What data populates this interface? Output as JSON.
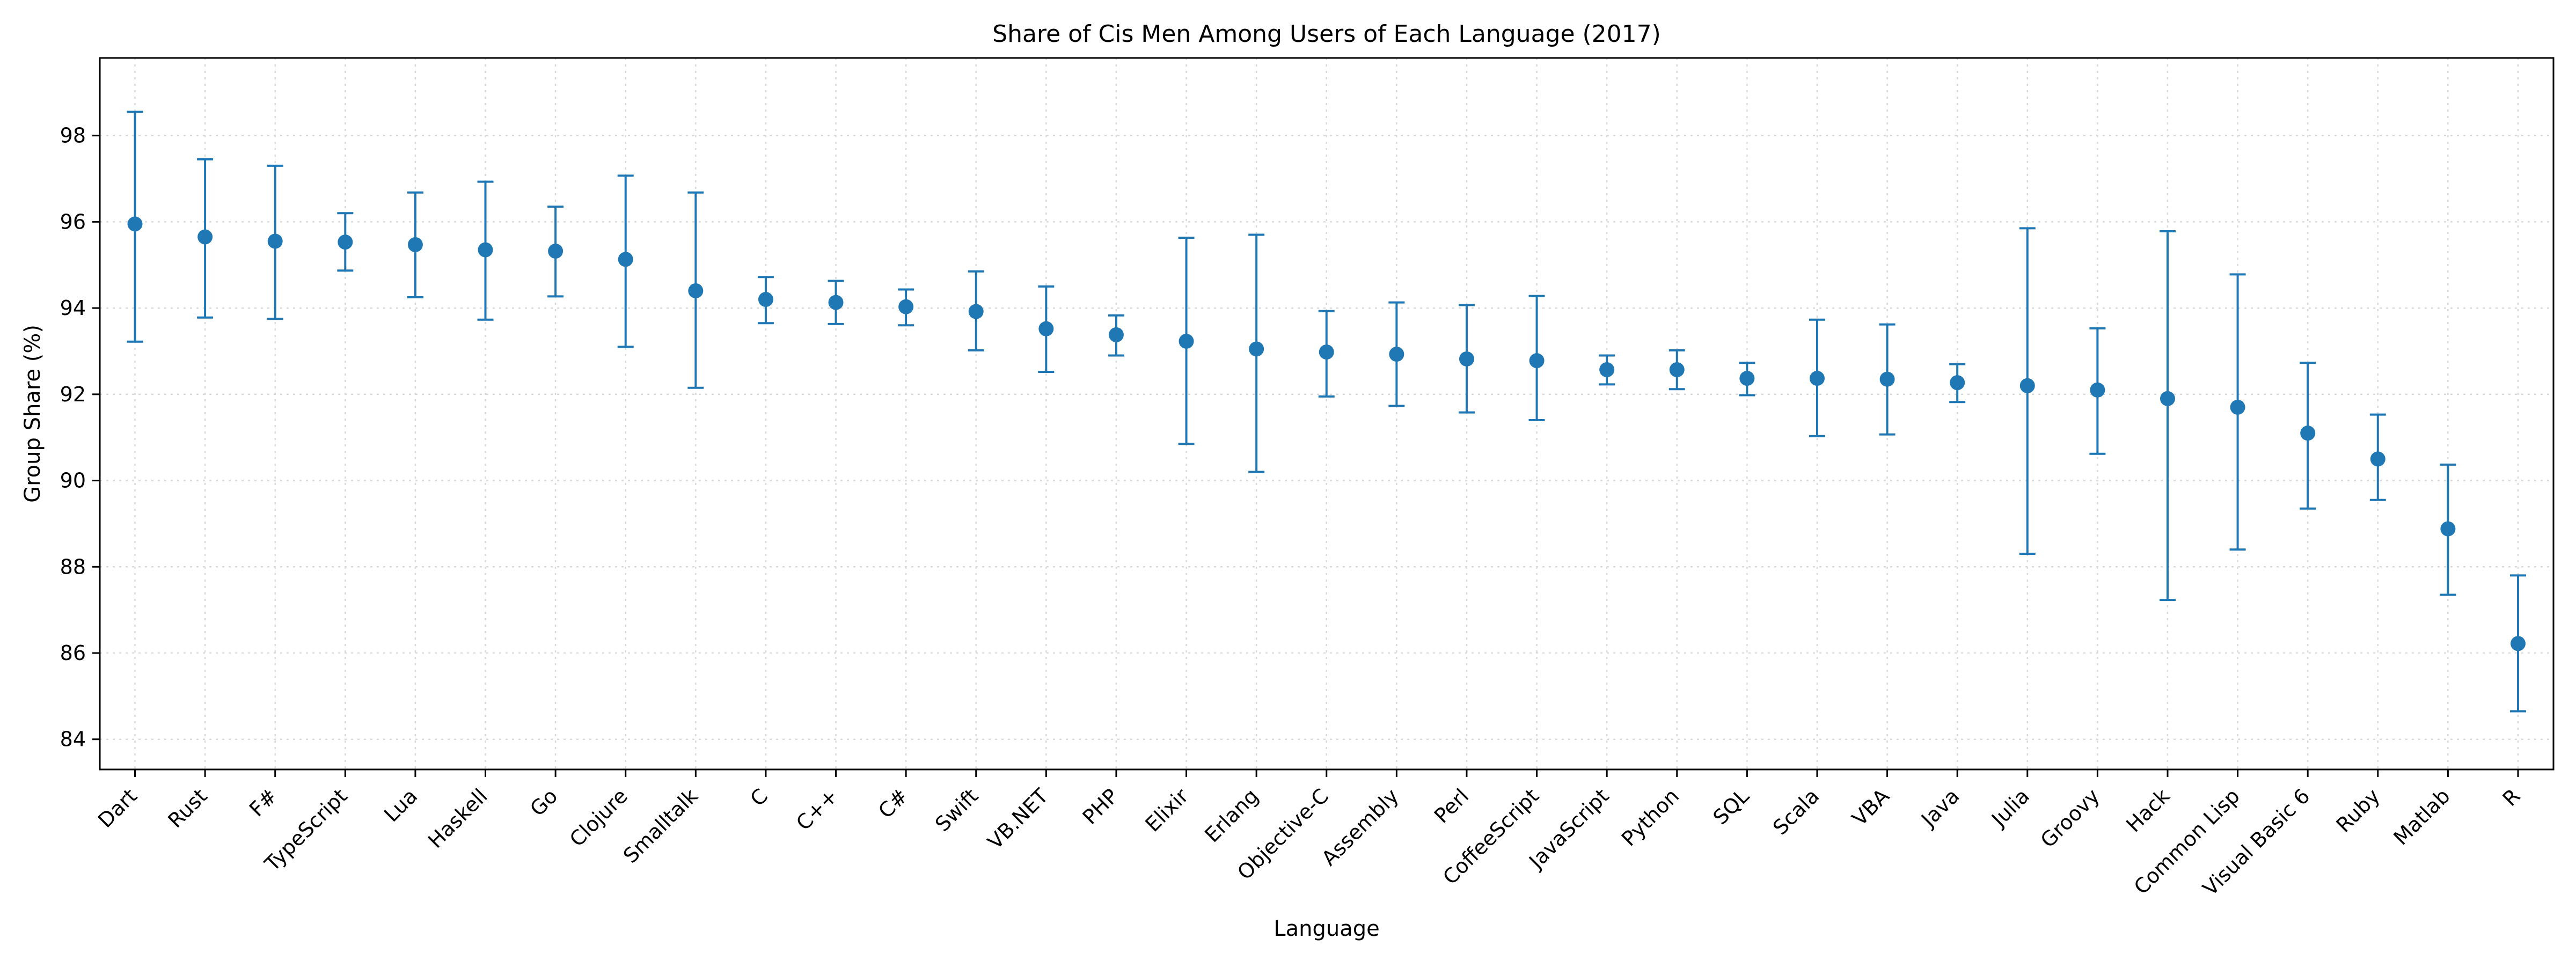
{
  "chart_data": {
    "type": "errorbar",
    "title": "Share of Cis Men Among Users of Each Language (2017)",
    "xlabel": "Language",
    "ylabel": "Group Share (%)",
    "ylim": [
      83.3,
      99.8
    ],
    "yticks": [
      84,
      86,
      88,
      90,
      92,
      94,
      96,
      98
    ],
    "grid": true,
    "color": "#1f77b4",
    "categories": [
      "Dart",
      "Rust",
      "F#",
      "TypeScript",
      "Lua",
      "Haskell",
      "Go",
      "Clojure",
      "Smalltalk",
      "C",
      "C++",
      "C#",
      "Swift",
      "VB.NET",
      "PHP",
      "Elixir",
      "Erlang",
      "Objective-C",
      "Assembly",
      "Perl",
      "CoffeeScript",
      "JavaScript",
      "Python",
      "SQL",
      "Scala",
      "VBA",
      "Java",
      "Julia",
      "Groovy",
      "Hack",
      "Common Lisp",
      "Visual Basic 6",
      "Ruby",
      "Matlab",
      "R"
    ],
    "values": [
      95.95,
      95.65,
      95.55,
      95.53,
      95.47,
      95.35,
      95.32,
      95.13,
      94.4,
      94.2,
      94.13,
      94.03,
      93.92,
      93.52,
      93.38,
      93.23,
      93.05,
      92.98,
      92.93,
      92.82,
      92.78,
      92.57,
      92.57,
      92.37,
      92.37,
      92.35,
      92.27,
      92.2,
      92.1,
      91.9,
      91.7,
      91.1,
      90.5,
      88.88,
      86.22
    ],
    "lower": [
      93.22,
      93.78,
      93.75,
      94.87,
      94.25,
      93.73,
      94.27,
      93.1,
      92.15,
      93.65,
      93.63,
      93.6,
      93.02,
      92.52,
      92.9,
      90.85,
      90.2,
      91.95,
      91.73,
      91.58,
      91.4,
      92.23,
      92.12,
      91.98,
      91.03,
      91.07,
      91.82,
      88.3,
      90.62,
      87.23,
      88.4,
      89.35,
      89.55,
      87.35,
      84.65
    ],
    "upper": [
      98.55,
      97.45,
      97.3,
      96.2,
      96.68,
      96.93,
      96.35,
      97.07,
      96.68,
      94.72,
      94.63,
      94.43,
      94.85,
      94.5,
      93.83,
      95.63,
      95.7,
      93.93,
      94.13,
      94.07,
      94.28,
      92.9,
      93.02,
      92.73,
      93.73,
      93.62,
      92.7,
      95.85,
      93.53,
      95.78,
      94.78,
      92.73,
      91.53,
      90.37,
      87.8
    ]
  }
}
